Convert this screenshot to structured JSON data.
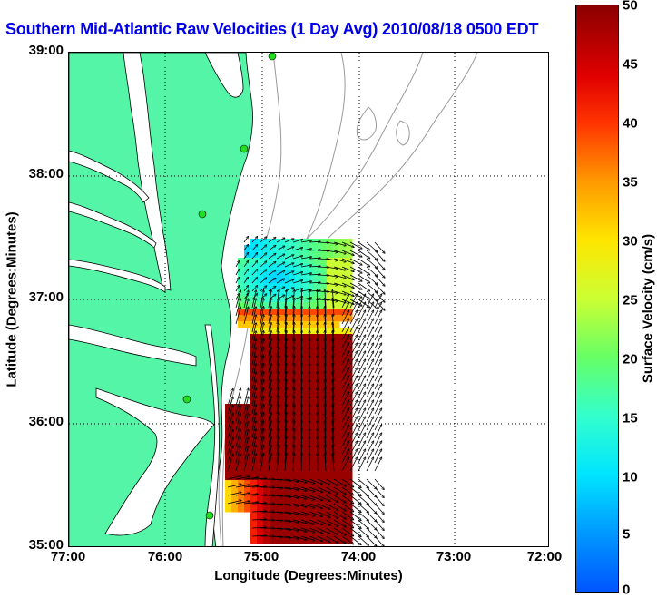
{
  "title": "Southern Mid-Atlantic Raw Velocities (1 Day Avg) 2010/08/18 0500 EDT",
  "axes": {
    "xlabel": "Longitude (Degrees:Minutes)",
    "ylabel": "Latitude (Degrees:Minutes)",
    "x_ticks": [
      "77:00",
      "76:00",
      "75:00",
      "74:00",
      "73:00",
      "72:00"
    ],
    "y_ticks": [
      "39:00",
      "38:00",
      "37:00",
      "36:00",
      "35:00"
    ],
    "xlim": [
      -77.0,
      -72.0
    ],
    "ylim": [
      35.0,
      39.0
    ],
    "grid": "dotted"
  },
  "colorbar": {
    "label": "Surface Velocity (cm/s)",
    "ticks": [
      "50",
      "45",
      "40",
      "35",
      "30",
      "25",
      "20",
      "15",
      "10",
      "5",
      "0"
    ],
    "min": 0,
    "max": 50
  },
  "colors": {
    "land": "#55f5a8",
    "title": "#0000ee",
    "bathymetry": "#999999",
    "site_marker": "#22dd22"
  }
}
